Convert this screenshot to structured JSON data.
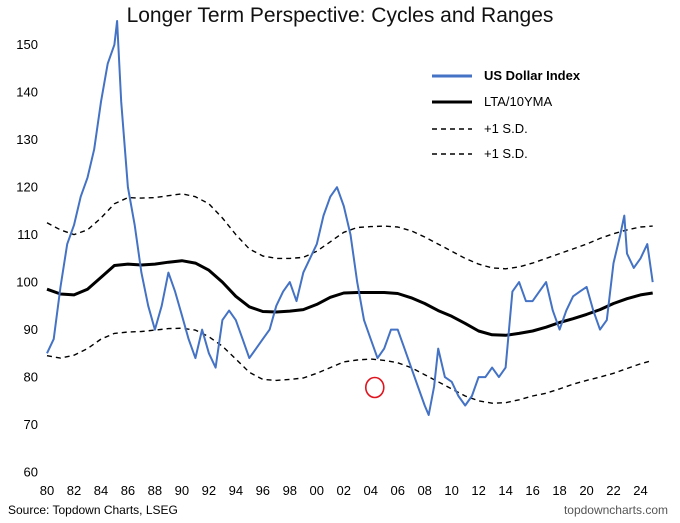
{
  "chart_data": {
    "type": "line",
    "title": "Longer Term Perspective: Cycles and Ranges",
    "xlabel": "",
    "ylabel": "",
    "xlim": [
      1980,
      2025
    ],
    "ylim": [
      60,
      155
    ],
    "y_ticks": [
      "60",
      "70",
      "80",
      "90",
      "100",
      "110",
      "120",
      "130",
      "140",
      "150"
    ],
    "x_ticks": [
      "80",
      "82",
      "84",
      "86",
      "88",
      "90",
      "92",
      "94",
      "96",
      "98",
      "00",
      "02",
      "04",
      "06",
      "08",
      "10",
      "12",
      "14",
      "16",
      "18",
      "20",
      "22",
      "24"
    ],
    "grid": false,
    "legend_position": "top-right",
    "annotation": "red circle around 2004 low",
    "series": [
      {
        "name": "US Dollar Index",
        "color": "#4472C4",
        "x": [
          1980.0,
          1980.5,
          1981.0,
          1981.5,
          1982.0,
          1982.5,
          1983.0,
          1983.5,
          1984.0,
          1984.5,
          1985.0,
          1985.2,
          1985.5,
          1986.0,
          1986.5,
          1987.0,
          1987.5,
          1988.0,
          1988.5,
          1989.0,
          1989.5,
          1990.0,
          1990.5,
          1991.0,
          1991.5,
          1992.0,
          1992.5,
          1993.0,
          1993.5,
          1994.0,
          1994.5,
          1995.0,
          1995.5,
          1996.0,
          1996.5,
          1997.0,
          1997.5,
          1998.0,
          1998.5,
          1999.0,
          1999.5,
          2000.0,
          2000.5,
          2001.0,
          2001.5,
          2002.0,
          2002.5,
          2003.0,
          2003.5,
          2004.0,
          2004.5,
          2005.0,
          2005.5,
          2006.0,
          2006.5,
          2007.0,
          2007.5,
          2008.0,
          2008.3,
          2008.7,
          2009.0,
          2009.5,
          2010.0,
          2010.5,
          2011.0,
          2011.5,
          2012.0,
          2012.5,
          2013.0,
          2013.5,
          2014.0,
          2014.5,
          2015.0,
          2015.5,
          2016.0,
          2016.5,
          2017.0,
          2017.5,
          2018.0,
          2018.5,
          2019.0,
          2019.5,
          2020.0,
          2020.5,
          2021.0,
          2021.5,
          2022.0,
          2022.5,
          2022.8,
          2023.0,
          2023.5,
          2024.0,
          2024.5,
          2024.9
        ],
        "values": [
          85,
          88,
          99,
          108,
          112,
          118,
          122,
          128,
          138,
          146,
          150,
          155,
          138,
          120,
          112,
          102,
          95,
          90,
          95,
          102,
          98,
          93,
          88,
          84,
          90,
          85,
          82,
          92,
          94,
          92,
          88,
          84,
          86,
          88,
          90,
          95,
          98,
          100,
          96,
          102,
          105,
          108,
          114,
          118,
          120,
          116,
          110,
          100,
          92,
          88,
          84,
          86,
          90,
          90,
          86,
          82,
          78,
          74,
          72,
          78,
          86,
          80,
          79,
          76,
          74,
          76,
          80,
          80,
          82,
          80,
          82,
          98,
          100,
          96,
          96,
          98,
          100,
          94,
          90,
          94,
          97,
          98,
          99,
          94,
          90,
          92,
          104,
          110,
          114,
          106,
          103,
          105,
          108,
          100
        ]
      },
      {
        "name": "LTA/10YMA",
        "color": "#000000",
        "x": [
          1980,
          1981,
          1982,
          1983,
          1984,
          1985,
          1986,
          1987,
          1988,
          1989,
          1990,
          1991,
          1992,
          1993,
          1994,
          1995,
          1996,
          1997,
          1998,
          1999,
          2000,
          2001,
          2002,
          2003,
          2004,
          2005,
          2006,
          2007,
          2008,
          2009,
          2010,
          2011,
          2012,
          2013,
          2014,
          2015,
          2016,
          2017,
          2018,
          2019,
          2020,
          2021,
          2022,
          2023,
          2024,
          2024.9
        ],
        "values": [
          98.5,
          97.5,
          97.3,
          98.5,
          101,
          103.5,
          103.8,
          103.6,
          103.8,
          104.2,
          104.5,
          104,
          102.5,
          100,
          97,
          94.8,
          93.8,
          93.7,
          93.9,
          94.2,
          95.3,
          96.8,
          97.7,
          97.8,
          97.8,
          97.8,
          97.6,
          96.7,
          95.5,
          94,
          92.8,
          91.3,
          89.7,
          88.9,
          88.8,
          89.2,
          89.7,
          90.5,
          91.5,
          92.3,
          93.2,
          94.2,
          95.5,
          96.5,
          97.3,
          97.7
        ]
      },
      {
        "name": "+1 S.D.",
        "color": "#000000",
        "dash": true,
        "x": [
          1980,
          1981,
          1982,
          1983,
          1984,
          1985,
          1986,
          1987,
          1988,
          1989,
          1990,
          1991,
          1992,
          1993,
          1994,
          1995,
          1996,
          1997,
          1998,
          1999,
          2000,
          2001,
          2002,
          2003,
          2004,
          2005,
          2006,
          2007,
          2008,
          2009,
          2010,
          2011,
          2012,
          2013,
          2014,
          2015,
          2016,
          2017,
          2018,
          2019,
          2020,
          2021,
          2022,
          2023,
          2024,
          2024.9
        ],
        "values": [
          112.5,
          111,
          110,
          111,
          113.5,
          116.5,
          117.8,
          117.7,
          117.8,
          118.2,
          118.6,
          118,
          116.5,
          113.5,
          110,
          107,
          105.5,
          105,
          105,
          105.2,
          106.5,
          108.5,
          110.5,
          111.5,
          111.7,
          111.8,
          111.6,
          110.8,
          109.5,
          108,
          106.5,
          105,
          103.8,
          103,
          102.8,
          103.2,
          104,
          105,
          106,
          107,
          108,
          109.2,
          110.2,
          111,
          111.6,
          111.8
        ]
      },
      {
        "name": "+1 S.D.",
        "color": "#000000",
        "dash": true,
        "x": [
          1980,
          1981,
          1982,
          1983,
          1984,
          1985,
          1986,
          1987,
          1988,
          1989,
          1990,
          1991,
          1992,
          1993,
          1994,
          1995,
          1996,
          1997,
          1998,
          1999,
          2000,
          2001,
          2002,
          2003,
          2004,
          2005,
          2006,
          2007,
          2008,
          2009,
          2010,
          2011,
          2012,
          2013,
          2014,
          2015,
          2016,
          2017,
          2018,
          2019,
          2020,
          2021,
          2022,
          2023,
          2024,
          2024.9
        ],
        "values": [
          84.5,
          84,
          84.6,
          86,
          88,
          89.2,
          89.5,
          89.6,
          89.9,
          90.2,
          90.3,
          89.9,
          88.5,
          86.5,
          83.8,
          81,
          79.5,
          79.3,
          79.5,
          79.8,
          80.8,
          82,
          83.2,
          83.6,
          83.8,
          83.5,
          83,
          82,
          80.5,
          79,
          77.5,
          76,
          75,
          74.5,
          74.6,
          75.2,
          76,
          76.6,
          77.5,
          78.5,
          79.3,
          80,
          80.8,
          81.8,
          82.8,
          83.5
        ]
      }
    ]
  },
  "footer": {
    "source": "Source: Topdown Charts, LSEG",
    "brand": "topdowncharts.com"
  }
}
